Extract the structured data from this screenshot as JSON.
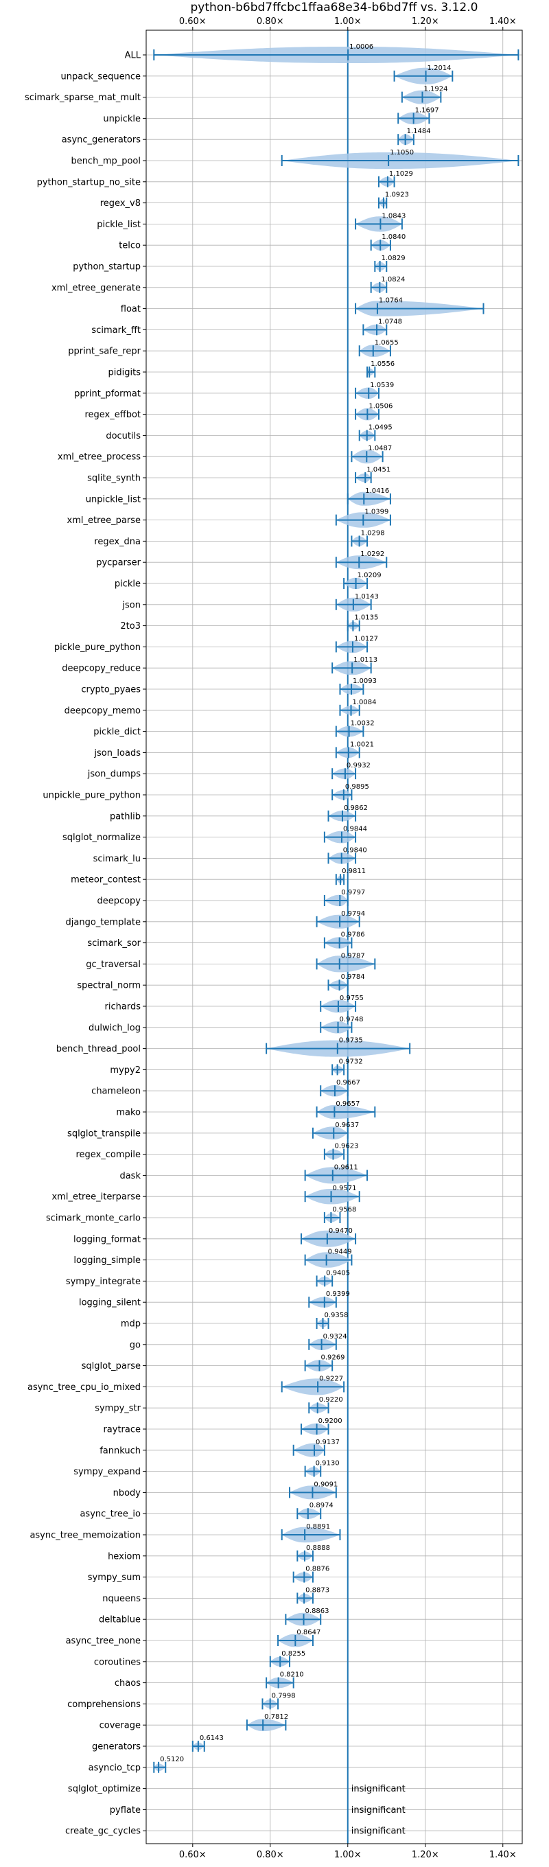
{
  "chart_data": {
    "type": "violin",
    "title": "python-b6bd7ffcbc1ffaa68e34-b6bd7ff vs. 3.12.0",
    "xlabel": "",
    "ylabel": "",
    "xlim": [
      0.48,
      1.45
    ],
    "xticks": [
      0.6,
      0.8,
      1.0,
      1.2,
      1.4
    ],
    "xtick_labels": [
      "0.60×",
      "0.80×",
      "1.00×",
      "1.20×",
      "1.40×"
    ],
    "reference_line": 1.0,
    "grid": true,
    "colors": {
      "violin": "#a8c8e8",
      "errorbar": "#1f77b4",
      "reference": "#1f77b4"
    },
    "benchmarks": [
      {
        "name": "ALL",
        "value": 1.0006,
        "label": "1.0006",
        "lo": 0.5,
        "hi": 1.44,
        "spread": 0.12
      },
      {
        "name": "unpack_sequence",
        "value": 1.2014,
        "label": "1.2014",
        "lo": 1.12,
        "hi": 1.27,
        "spread": 0.07
      },
      {
        "name": "scimark_sparse_mat_mult",
        "value": 1.1924,
        "label": "1.1924",
        "lo": 1.14,
        "hi": 1.24,
        "spread": 0.05
      },
      {
        "name": "unpickle",
        "value": 1.1697,
        "label": "1.1697",
        "lo": 1.13,
        "hi": 1.21,
        "spread": 0.04
      },
      {
        "name": "async_generators",
        "value": 1.1484,
        "label": "1.1484",
        "lo": 1.13,
        "hi": 1.17,
        "spread": 0.03
      },
      {
        "name": "bench_mp_pool",
        "value": 1.105,
        "label": "1.1050",
        "lo": 0.83,
        "hi": 1.44,
        "spread": 0.2
      },
      {
        "name": "python_startup_no_site",
        "value": 1.1029,
        "label": "1.1029",
        "lo": 1.08,
        "hi": 1.12,
        "spread": 0.025
      },
      {
        "name": "regex_v8",
        "value": 1.0923,
        "label": "1.0923",
        "lo": 1.08,
        "hi": 1.1,
        "spread": 0.015
      },
      {
        "name": "pickle_list",
        "value": 1.0843,
        "label": "1.0843",
        "lo": 1.02,
        "hi": 1.14,
        "spread": 0.06
      },
      {
        "name": "telco",
        "value": 1.084,
        "label": "1.0840",
        "lo": 1.06,
        "hi": 1.11,
        "spread": 0.03
      },
      {
        "name": "python_startup",
        "value": 1.0829,
        "label": "1.0829",
        "lo": 1.07,
        "hi": 1.1,
        "spread": 0.02
      },
      {
        "name": "xml_etree_generate",
        "value": 1.0824,
        "label": "1.0824",
        "lo": 1.06,
        "hi": 1.1,
        "spread": 0.025
      },
      {
        "name": "float",
        "value": 1.0764,
        "label": "1.0764",
        "lo": 1.02,
        "hi": 1.35,
        "spread": 0.06
      },
      {
        "name": "scimark_fft",
        "value": 1.0748,
        "label": "1.0748",
        "lo": 1.04,
        "hi": 1.1,
        "spread": 0.03
      },
      {
        "name": "pprint_safe_repr",
        "value": 1.0655,
        "label": "1.0655",
        "lo": 1.03,
        "hi": 1.11,
        "spread": 0.04
      },
      {
        "name": "pidigits",
        "value": 1.0556,
        "label": "1.0556",
        "lo": 1.05,
        "hi": 1.07,
        "spread": 0.01
      },
      {
        "name": "pprint_pformat",
        "value": 1.0539,
        "label": "1.0539",
        "lo": 1.02,
        "hi": 1.08,
        "spread": 0.035
      },
      {
        "name": "regex_effbot",
        "value": 1.0506,
        "label": "1.0506",
        "lo": 1.02,
        "hi": 1.08,
        "spread": 0.04
      },
      {
        "name": "docutils",
        "value": 1.0495,
        "label": "1.0495",
        "lo": 1.03,
        "hi": 1.07,
        "spread": 0.025
      },
      {
        "name": "xml_etree_process",
        "value": 1.0487,
        "label": "1.0487",
        "lo": 1.01,
        "hi": 1.09,
        "spread": 0.05
      },
      {
        "name": "sqlite_synth",
        "value": 1.0451,
        "label": "1.0451",
        "lo": 1.02,
        "hi": 1.06,
        "spread": 0.02
      },
      {
        "name": "unpickle_list",
        "value": 1.0416,
        "label": "1.0416",
        "lo": 1.0,
        "hi": 1.11,
        "spread": 0.05
      },
      {
        "name": "xml_etree_parse",
        "value": 1.0399,
        "label": "1.0399",
        "lo": 0.97,
        "hi": 1.11,
        "spread": 0.06
      },
      {
        "name": "regex_dna",
        "value": 1.0298,
        "label": "1.0298",
        "lo": 1.01,
        "hi": 1.05,
        "spread": 0.025
      },
      {
        "name": "pycparser",
        "value": 1.0292,
        "label": "1.0292",
        "lo": 0.97,
        "hi": 1.1,
        "spread": 0.05
      },
      {
        "name": "pickle",
        "value": 1.0209,
        "label": "1.0209",
        "lo": 0.99,
        "hi": 1.05,
        "spread": 0.035
      },
      {
        "name": "json",
        "value": 1.0143,
        "label": "1.0143",
        "lo": 0.97,
        "hi": 1.06,
        "spread": 0.05
      },
      {
        "name": "2to3",
        "value": 1.0135,
        "label": "1.0135",
        "lo": 1.0,
        "hi": 1.03,
        "spread": 0.015
      },
      {
        "name": "pickle_pure_python",
        "value": 1.0127,
        "label": "1.0127",
        "lo": 0.97,
        "hi": 1.05,
        "spread": 0.04
      },
      {
        "name": "deepcopy_reduce",
        "value": 1.0113,
        "label": "1.0113",
        "lo": 0.96,
        "hi": 1.06,
        "spread": 0.05
      },
      {
        "name": "crypto_pyaes",
        "value": 1.0093,
        "label": "1.0093",
        "lo": 0.98,
        "hi": 1.04,
        "spread": 0.03
      },
      {
        "name": "deepcopy_memo",
        "value": 1.0084,
        "label": "1.0084",
        "lo": 0.98,
        "hi": 1.03,
        "spread": 0.02
      },
      {
        "name": "pickle_dict",
        "value": 1.0032,
        "label": "1.0032",
        "lo": 0.97,
        "hi": 1.04,
        "spread": 0.03
      },
      {
        "name": "json_loads",
        "value": 1.0021,
        "label": "1.0021",
        "lo": 0.97,
        "hi": 1.03,
        "spread": 0.03
      },
      {
        "name": "json_dumps",
        "value": 0.9932,
        "label": "0.9932",
        "lo": 0.96,
        "hi": 1.02,
        "spread": 0.03
      },
      {
        "name": "unpickle_pure_python",
        "value": 0.9895,
        "label": "0.9895",
        "lo": 0.96,
        "hi": 1.01,
        "spread": 0.025
      },
      {
        "name": "pathlib",
        "value": 0.9862,
        "label": "0.9862",
        "lo": 0.95,
        "hi": 1.02,
        "spread": 0.03
      },
      {
        "name": "sqlglot_normalize",
        "value": 0.9844,
        "label": "0.9844",
        "lo": 0.94,
        "hi": 1.02,
        "spread": 0.04
      },
      {
        "name": "scimark_lu",
        "value": 0.984,
        "label": "0.9840",
        "lo": 0.95,
        "hi": 1.02,
        "spread": 0.035
      },
      {
        "name": "meteor_contest",
        "value": 0.9811,
        "label": "0.9811",
        "lo": 0.97,
        "hi": 0.99,
        "spread": 0.01
      },
      {
        "name": "deepcopy",
        "value": 0.9797,
        "label": "0.9797",
        "lo": 0.94,
        "hi": 1.0,
        "spread": 0.035
      },
      {
        "name": "django_template",
        "value": 0.9794,
        "label": "0.9794",
        "lo": 0.92,
        "hi": 1.03,
        "spread": 0.05
      },
      {
        "name": "scimark_sor",
        "value": 0.9786,
        "label": "0.9786",
        "lo": 0.94,
        "hi": 1.01,
        "spread": 0.035
      },
      {
        "name": "gc_traversal",
        "value": 0.9787,
        "label": "0.9787",
        "lo": 0.92,
        "hi": 1.07,
        "spread": 0.07
      },
      {
        "name": "spectral_norm",
        "value": 0.9784,
        "label": "0.9784",
        "lo": 0.95,
        "hi": 1.0,
        "spread": 0.025
      },
      {
        "name": "richards",
        "value": 0.9755,
        "label": "0.9755",
        "lo": 0.93,
        "hi": 1.02,
        "spread": 0.045
      },
      {
        "name": "dulwich_log",
        "value": 0.9748,
        "label": "0.9748",
        "lo": 0.93,
        "hi": 1.01,
        "spread": 0.04
      },
      {
        "name": "bench_thread_pool",
        "value": 0.9735,
        "label": "0.9735",
        "lo": 0.79,
        "hi": 1.16,
        "spread": 0.2
      },
      {
        "name": "mypy2",
        "value": 0.9732,
        "label": "0.9732",
        "lo": 0.96,
        "hi": 0.99,
        "spread": 0.015
      },
      {
        "name": "chameleon",
        "value": 0.9667,
        "label": "0.9667",
        "lo": 0.93,
        "hi": 1.0,
        "spread": 0.035
      },
      {
        "name": "mako",
        "value": 0.9657,
        "label": "0.9657",
        "lo": 0.92,
        "hi": 1.07,
        "spread": 0.05
      },
      {
        "name": "sqlglot_transpile",
        "value": 0.9637,
        "label": "0.9637",
        "lo": 0.91,
        "hi": 1.0,
        "spread": 0.045
      },
      {
        "name": "regex_compile",
        "value": 0.9623,
        "label": "0.9623",
        "lo": 0.94,
        "hi": 0.99,
        "spread": 0.025
      },
      {
        "name": "dask",
        "value": 0.9611,
        "label": "0.9611",
        "lo": 0.89,
        "hi": 1.05,
        "spread": 0.08
      },
      {
        "name": "xml_etree_iterparse",
        "value": 0.9571,
        "label": "0.9571",
        "lo": 0.89,
        "hi": 1.03,
        "spread": 0.06
      },
      {
        "name": "scimark_monte_carlo",
        "value": 0.9568,
        "label": "0.9568",
        "lo": 0.94,
        "hi": 0.98,
        "spread": 0.02
      },
      {
        "name": "logging_format",
        "value": 0.947,
        "label": "0.9470",
        "lo": 0.88,
        "hi": 1.02,
        "spread": 0.07
      },
      {
        "name": "logging_simple",
        "value": 0.9449,
        "label": "0.9449",
        "lo": 0.89,
        "hi": 1.01,
        "spread": 0.06
      },
      {
        "name": "sympy_integrate",
        "value": 0.9405,
        "label": "0.9405",
        "lo": 0.92,
        "hi": 0.96,
        "spread": 0.02
      },
      {
        "name": "logging_silent",
        "value": 0.9399,
        "label": "0.9399",
        "lo": 0.9,
        "hi": 0.97,
        "spread": 0.03
      },
      {
        "name": "mdp",
        "value": 0.9358,
        "label": "0.9358",
        "lo": 0.92,
        "hi": 0.95,
        "spread": 0.015
      },
      {
        "name": "go",
        "value": 0.9324,
        "label": "0.9324",
        "lo": 0.9,
        "hi": 0.97,
        "spread": 0.035
      },
      {
        "name": "sqlglot_parse",
        "value": 0.9269,
        "label": "0.9269",
        "lo": 0.89,
        "hi": 0.96,
        "spread": 0.035
      },
      {
        "name": "async_tree_cpu_io_mixed",
        "value": 0.9227,
        "label": "0.9227",
        "lo": 0.83,
        "hi": 0.99,
        "spread": 0.07
      },
      {
        "name": "sympy_str",
        "value": 0.922,
        "label": "0.9220",
        "lo": 0.9,
        "hi": 0.95,
        "spread": 0.025
      },
      {
        "name": "raytrace",
        "value": 0.92,
        "label": "0.9200",
        "lo": 0.88,
        "hi": 0.95,
        "spread": 0.035
      },
      {
        "name": "fannkuch",
        "value": 0.9137,
        "label": "0.9137",
        "lo": 0.86,
        "hi": 0.94,
        "spread": 0.05
      },
      {
        "name": "sympy_expand",
        "value": 0.913,
        "label": "0.9130",
        "lo": 0.89,
        "hi": 0.93,
        "spread": 0.02
      },
      {
        "name": "nbody",
        "value": 0.9091,
        "label": "0.9091",
        "lo": 0.85,
        "hi": 0.97,
        "spread": 0.05
      },
      {
        "name": "async_tree_io",
        "value": 0.8974,
        "label": "0.8974",
        "lo": 0.87,
        "hi": 0.93,
        "spread": 0.03
      },
      {
        "name": "async_tree_memoization",
        "value": 0.8891,
        "label": "0.8891",
        "lo": 0.83,
        "hi": 0.98,
        "spread": 0.06
      },
      {
        "name": "hexiom",
        "value": 0.8888,
        "label": "0.8888",
        "lo": 0.87,
        "hi": 0.91,
        "spread": 0.02
      },
      {
        "name": "sympy_sum",
        "value": 0.8876,
        "label": "0.8876",
        "lo": 0.86,
        "hi": 0.91,
        "spread": 0.025
      },
      {
        "name": "nqueens",
        "value": 0.8873,
        "label": "0.8873",
        "lo": 0.87,
        "hi": 0.91,
        "spread": 0.02
      },
      {
        "name": "deltablue",
        "value": 0.8863,
        "label": "0.8863",
        "lo": 0.84,
        "hi": 0.93,
        "spread": 0.045
      },
      {
        "name": "async_tree_none",
        "value": 0.8647,
        "label": "0.8647",
        "lo": 0.82,
        "hi": 0.91,
        "spread": 0.045
      },
      {
        "name": "coroutines",
        "value": 0.8255,
        "label": "0.8255",
        "lo": 0.8,
        "hi": 0.85,
        "spread": 0.025
      },
      {
        "name": "chaos",
        "value": 0.821,
        "label": "0.8210",
        "lo": 0.79,
        "hi": 0.86,
        "spread": 0.03
      },
      {
        "name": "comprehensions",
        "value": 0.7998,
        "label": "0.7998",
        "lo": 0.78,
        "hi": 0.82,
        "spread": 0.02
      },
      {
        "name": "coverage",
        "value": 0.7812,
        "label": "0.7812",
        "lo": 0.74,
        "hi": 0.84,
        "spread": 0.04
      },
      {
        "name": "generators",
        "value": 0.6143,
        "label": "0.6143",
        "lo": 0.6,
        "hi": 0.63,
        "spread": 0.012
      },
      {
        "name": "asyncio_tcp",
        "value": 0.512,
        "label": "0.5120",
        "lo": 0.5,
        "hi": 0.53,
        "spread": 0.012
      },
      {
        "name": "sqlglot_optimize",
        "value": null,
        "label": "insignificant"
      },
      {
        "name": "pyflate",
        "value": null,
        "label": "insignificant"
      },
      {
        "name": "create_gc_cycles",
        "value": null,
        "label": "insignificant"
      }
    ]
  }
}
